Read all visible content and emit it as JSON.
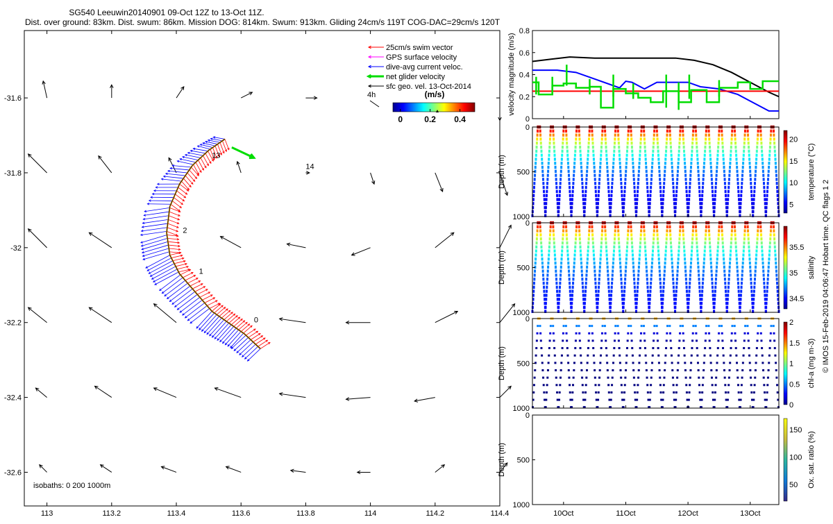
{
  "title": {
    "line1": "SG540 Leeuwin20140901 09-Oct 12Z to 13-Oct 11Z.",
    "line2": "Dist. over ground: 83km. Dist. swum: 86km. Mission DOG: 814km. Swum: 913km. Gliding 24cm/s 119T COG-DAC=29cm/s 120T"
  },
  "credit": "© IMOS 15-Feb-2019 04:06:47 Hobart time. QC flags 1  2",
  "colors": {
    "swim": "#ff0000",
    "gps": "#ff00ff",
    "dac": "#0000ff",
    "net": "#00dd00",
    "geo": "#000000",
    "track": "#cc8800"
  },
  "chart_data": [
    {
      "type": "scatter",
      "name": "map",
      "x_ticks": [
        "113",
        "113.2",
        "113.4",
        "113.6",
        "113.8",
        "114",
        "114.2",
        "114.4"
      ],
      "y_ticks": [
        "-31.6",
        "-31.8",
        "-32",
        "-32.2",
        "-32.4",
        "-32.6"
      ],
      "xlim": [
        112.93,
        114.4
      ],
      "ylim": [
        -32.69,
        -31.42
      ],
      "legend": [
        {
          "key": "swim",
          "label": "25cm/s swim vector"
        },
        {
          "key": "gps",
          "label": "GPS surface velocity"
        },
        {
          "key": "dac",
          "label": "dive-avg current veloc."
        },
        {
          "key": "net",
          "label": "net glider velocity"
        },
        {
          "key": "geo",
          "label": "sfc geo. vel. 13-Oct-2014"
        }
      ],
      "ref_label": "4h",
      "colorbar": {
        "title": "(m/s)",
        "ticks": [
          "0",
          "0.2",
          "0.4"
        ],
        "range": [
          -0.05,
          0.5
        ]
      },
      "isobaths_label": "isobaths: 0   200  1000m",
      "track": [
        {
          "lon": 113.55,
          "lat": -31.71
        },
        {
          "lon": 113.5,
          "lat": -31.74
        },
        {
          "lon": 113.45,
          "lat": -31.78
        },
        {
          "lon": 113.41,
          "lat": -31.83
        },
        {
          "lon": 113.38,
          "lat": -31.89
        },
        {
          "lon": 113.37,
          "lat": -31.96
        },
        {
          "lon": 113.38,
          "lat": -32.02
        },
        {
          "lon": 113.41,
          "lat": -32.07
        },
        {
          "lon": 113.46,
          "lat": -32.12
        },
        {
          "lon": 113.51,
          "lat": -32.17
        },
        {
          "lon": 113.56,
          "lat": -32.2
        },
        {
          "lon": 113.61,
          "lat": -32.23
        },
        {
          "lon": 113.66,
          "lat": -32.27
        }
      ],
      "day_labels": [
        {
          "text": "13",
          "lon": 113.51,
          "lat": -31.76
        },
        {
          "text": "14",
          "lon": 113.8,
          "lat": -31.79
        },
        {
          "text": "2",
          "lon": 113.42,
          "lat": -31.96
        },
        {
          "text": "1",
          "lon": 113.47,
          "lat": -32.07
        },
        {
          "text": "0",
          "lon": 113.64,
          "lat": -32.2
        }
      ],
      "geo_arrows": [
        {
          "lon": 113.0,
          "lat": -31.6,
          "u": -0.01,
          "v": 0.045
        },
        {
          "lon": 113.2,
          "lat": -31.6,
          "u": 0.0,
          "v": 0.035
        },
        {
          "lon": 113.4,
          "lat": -31.6,
          "u": 0.02,
          "v": 0.03
        },
        {
          "lon": 113.6,
          "lat": -31.6,
          "u": 0.03,
          "v": 0.015
        },
        {
          "lon": 113.8,
          "lat": -31.6,
          "u": 0.03,
          "v": 0.0
        },
        {
          "lon": 114.4,
          "lat": -31.6,
          "u": 0.0,
          "v": -0.06
        },
        {
          "lon": 113.0,
          "lat": -31.8,
          "u": -0.05,
          "v": 0.05
        },
        {
          "lon": 113.2,
          "lat": -31.8,
          "u": -0.035,
          "v": 0.045
        },
        {
          "lon": 113.4,
          "lat": -31.8,
          "u": -0.02,
          "v": 0.04
        },
        {
          "lon": 113.6,
          "lat": -31.8,
          "u": -0.01,
          "v": 0.03
        },
        {
          "lon": 113.8,
          "lat": -31.8,
          "u": 0.01,
          "v": 0.0
        },
        {
          "lon": 114.0,
          "lat": -31.8,
          "u": 0.01,
          "v": -0.03
        },
        {
          "lon": 114.2,
          "lat": -31.8,
          "u": 0.02,
          "v": -0.05
        },
        {
          "lon": 114.4,
          "lat": -31.8,
          "u": 0.02,
          "v": -0.06
        },
        {
          "lon": 113.0,
          "lat": -32.0,
          "u": -0.05,
          "v": 0.05
        },
        {
          "lon": 113.2,
          "lat": -32.0,
          "u": -0.06,
          "v": 0.04
        },
        {
          "lon": 113.6,
          "lat": -32.0,
          "u": -0.055,
          "v": 0.03
        },
        {
          "lon": 113.8,
          "lat": -32.0,
          "u": -0.05,
          "v": 0.01
        },
        {
          "lon": 114.0,
          "lat": -32.0,
          "u": -0.05,
          "v": -0.02
        },
        {
          "lon": 114.2,
          "lat": -32.0,
          "u": 0.05,
          "v": 0.04
        },
        {
          "lon": 114.4,
          "lat": -32.0,
          "u": 0.03,
          "v": 0.06
        },
        {
          "lon": 113.0,
          "lat": -32.2,
          "u": -0.05,
          "v": 0.04
        },
        {
          "lon": 113.2,
          "lat": -32.2,
          "u": -0.06,
          "v": 0.04
        },
        {
          "lon": 113.4,
          "lat": -32.2,
          "u": -0.06,
          "v": 0.05
        },
        {
          "lon": 113.8,
          "lat": -32.2,
          "u": -0.07,
          "v": 0.01
        },
        {
          "lon": 114.0,
          "lat": -32.2,
          "u": -0.065,
          "v": 0.0
        },
        {
          "lon": 114.2,
          "lat": -32.2,
          "u": 0.06,
          "v": 0.03
        },
        {
          "lon": 114.4,
          "lat": -32.2,
          "u": 0.04,
          "v": 0.05
        },
        {
          "lon": 113.0,
          "lat": -32.4,
          "u": -0.03,
          "v": 0.025
        },
        {
          "lon": 113.2,
          "lat": -32.4,
          "u": -0.045,
          "v": 0.03
        },
        {
          "lon": 113.4,
          "lat": -32.4,
          "u": -0.06,
          "v": 0.025
        },
        {
          "lon": 113.6,
          "lat": -32.4,
          "u": -0.07,
          "v": 0.025
        },
        {
          "lon": 113.8,
          "lat": -32.4,
          "u": -0.07,
          "v": 0.01
        },
        {
          "lon": 114.0,
          "lat": -32.4,
          "u": -0.065,
          "v": -0.005
        },
        {
          "lon": 114.2,
          "lat": -32.4,
          "u": -0.055,
          "v": -0.01
        },
        {
          "lon": 114.4,
          "lat": -32.4,
          "u": 0.03,
          "v": 0.03
        },
        {
          "lon": 113.0,
          "lat": -32.6,
          "u": -0.02,
          "v": 0.02
        },
        {
          "lon": 113.2,
          "lat": -32.6,
          "u": -0.03,
          "v": 0.02
        },
        {
          "lon": 113.4,
          "lat": -32.6,
          "u": -0.04,
          "v": 0.015
        },
        {
          "lon": 113.6,
          "lat": -32.6,
          "u": -0.04,
          "v": 0.015
        },
        {
          "lon": 113.8,
          "lat": -32.6,
          "u": -0.04,
          "v": 0.005
        },
        {
          "lon": 114.0,
          "lat": -32.6,
          "u": -0.035,
          "v": 0.0
        },
        {
          "lon": 114.2,
          "lat": -32.6,
          "u": 0.025,
          "v": 0.02
        },
        {
          "lon": 114.4,
          "lat": -32.6,
          "u": 0.02,
          "v": 0.025
        }
      ]
    },
    {
      "type": "line",
      "name": "velocity",
      "ylabel": "velocity magnitude (m/s)",
      "ylim": [
        0,
        0.8
      ],
      "yticks": [
        "0",
        "0.2",
        "0.4",
        "0.6",
        "0.8"
      ],
      "x_labels": [
        "10Oct",
        "11Oct",
        "12Oct",
        "13Oct"
      ],
      "x_label_days": [
        10,
        11,
        12,
        13
      ],
      "xlim": [
        9.5,
        13.46
      ],
      "series": [
        {
          "key": "geo",
          "x": [
            9.5,
            9.8,
            10.1,
            10.5,
            11.0,
            11.5,
            11.8,
            12.1,
            12.4,
            12.7,
            13.0,
            13.3,
            13.46
          ],
          "y": [
            0.52,
            0.54,
            0.56,
            0.55,
            0.55,
            0.55,
            0.55,
            0.53,
            0.49,
            0.42,
            0.33,
            0.24,
            0.2
          ]
        },
        {
          "key": "dac",
          "x": [
            9.5,
            9.9,
            10.2,
            10.5,
            10.8,
            10.9,
            11.0,
            11.1,
            11.3,
            11.5,
            11.8,
            12.0,
            12.2,
            12.5,
            12.8,
            13.0,
            13.2,
            13.3,
            13.46
          ],
          "y": [
            0.44,
            0.44,
            0.42,
            0.36,
            0.3,
            0.28,
            0.34,
            0.33,
            0.27,
            0.33,
            0.33,
            0.33,
            0.29,
            0.27,
            0.22,
            0.16,
            0.1,
            0.07,
            0.07
          ]
        },
        {
          "key": "swim",
          "x": [
            9.5,
            13.46
          ],
          "y": [
            0.25,
            0.25
          ]
        },
        {
          "key": "net",
          "steps": [
            [
              9.5,
              0.33
            ],
            [
              9.6,
              0.22
            ],
            [
              9.82,
              0.3
            ],
            [
              10.0,
              0.32
            ],
            [
              10.2,
              0.28
            ],
            [
              10.42,
              0.29
            ],
            [
              10.6,
              0.1
            ],
            [
              10.8,
              0.27
            ],
            [
              11.0,
              0.23
            ],
            [
              11.2,
              0.19
            ],
            [
              11.4,
              0.15
            ],
            [
              11.6,
              0.25
            ],
            [
              11.85,
              0.15
            ],
            [
              12.05,
              0.26
            ],
            [
              12.3,
              0.15
            ],
            [
              12.5,
              0.28
            ],
            [
              12.8,
              0.33
            ],
            [
              13.0,
              0.27
            ],
            [
              13.2,
              0.34
            ],
            [
              13.46,
              0.34
            ]
          ]
        }
      ]
    },
    {
      "type": "heatmap",
      "name": "temperature",
      "ylabel": "Depth (m)",
      "cbar_label": "temperature (°C)",
      "cbar_ticks": [
        "5",
        "10",
        "15",
        "20"
      ],
      "cbar_range": [
        3,
        22
      ],
      "yticks": [
        "0",
        "500",
        "1000"
      ],
      "ylim": [
        0,
        1000
      ],
      "profiles": 19,
      "surface_value": 21.5,
      "deep_value": 4.0
    },
    {
      "type": "heatmap",
      "name": "salinity",
      "ylabel": "Depth (m)",
      "cbar_label": "salinity",
      "cbar_ticks": [
        "34.5",
        "35",
        "35.5"
      ],
      "cbar_range": [
        34.3,
        35.9
      ],
      "yticks": [
        "0",
        "500",
        "1000"
      ],
      "ylim": [
        0,
        1000
      ],
      "profiles": 19,
      "surface_value": 35.8,
      "deep_value": 34.45
    },
    {
      "type": "scatter",
      "name": "chla",
      "ylabel": "Depth (m)",
      "cbar_label": "chl-a (mg m-3)",
      "cbar_ticks": [
        "0",
        "0.5",
        "1",
        "1.5",
        "2"
      ],
      "cbar_range": [
        0,
        2
      ],
      "yticks": [
        "0",
        "500",
        "1000"
      ],
      "ylim": [
        0,
        1000
      ],
      "profiles": 19
    },
    {
      "type": "heatmap",
      "name": "oxygen",
      "ylabel": "Depth (m)",
      "cbar_label": "Ox. sat. ratio (%)",
      "cbar_ticks": [
        "50",
        "100",
        "150"
      ],
      "cbar_range": [
        20,
        170
      ],
      "yticks": [
        "0",
        "500",
        "1000"
      ],
      "ylim": [
        0,
        1000
      ]
    }
  ]
}
